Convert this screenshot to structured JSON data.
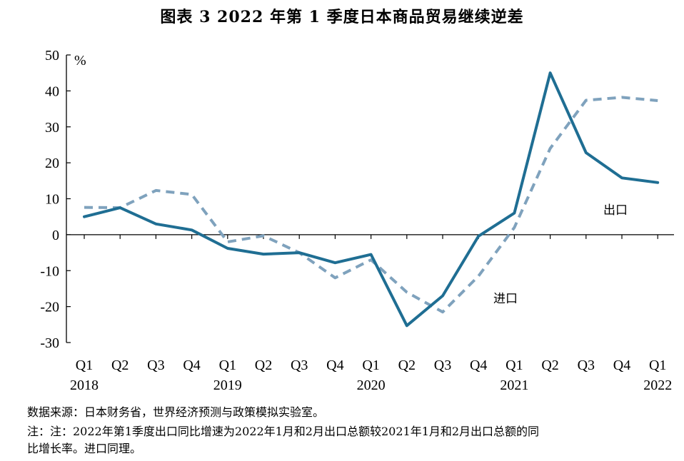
{
  "chart_data": {
    "type": "line",
    "title": "图表 3   2022 年第 1 季度日本商品贸易继续逆差",
    "ylabel": "%",
    "ylim": [
      -30,
      50
    ],
    "yticks": [
      -30,
      -20,
      -10,
      0,
      10,
      20,
      30,
      40,
      50
    ],
    "categories": [
      "Q1",
      "Q2",
      "Q3",
      "Q4",
      "Q1",
      "Q2",
      "Q3",
      "Q4",
      "Q1",
      "Q2",
      "Q3",
      "Q4",
      "Q1",
      "Q2",
      "Q3",
      "Q4",
      "Q1"
    ],
    "year_labels": [
      {
        "index": 0,
        "label": "2018"
      },
      {
        "index": 4,
        "label": "2019"
      },
      {
        "index": 8,
        "label": "2020"
      },
      {
        "index": 12,
        "label": "2021"
      },
      {
        "index": 16,
        "label": "2022"
      }
    ],
    "series": [
      {
        "name": "出口",
        "color": "#1f6e93",
        "style": "solid",
        "values": [
          5.0,
          7.5,
          3.0,
          1.3,
          -3.8,
          -5.4,
          -5.0,
          -7.8,
          -5.5,
          -25.3,
          -17.0,
          -0.4,
          6.0,
          45.0,
          22.8,
          15.8,
          14.5
        ]
      },
      {
        "name": "进口",
        "color": "#7fa2bd",
        "style": "dashed",
        "values": [
          7.6,
          7.5,
          12.3,
          11.2,
          -2.0,
          -0.3,
          -5.0,
          -12.0,
          -7.0,
          -16.0,
          -21.5,
          -11.5,
          2.0,
          24.0,
          37.4,
          38.2,
          37.3
        ]
      }
    ],
    "annotations": [
      {
        "text": "出口",
        "series": "出口"
      },
      {
        "text": "进口",
        "series": "进口"
      }
    ]
  },
  "notes": {
    "source": "数据来源：日本财务省，世界经济预测与政策模拟实验室。",
    "note_line1": "注：注：2022年第1季度出口同比增速为2022年1月和2月出口总额较2021年1月和2月出口总额的同",
    "note_line2": "比增长率。进口同理。"
  }
}
